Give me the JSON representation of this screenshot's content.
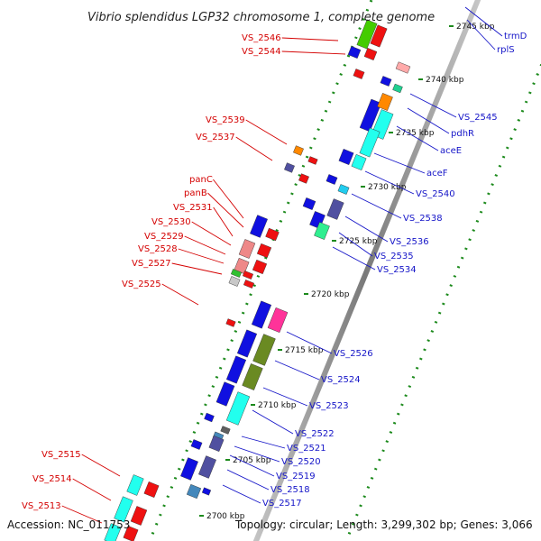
{
  "title": "Vibrio splendidus LGP32 chromosome 1, complete genome",
  "footer": {
    "accession": "Accession: NC_011753",
    "summary": "Topology: circular; Length: 3,299,302 bp; Genes: 3,066"
  },
  "colors": {
    "backbone": "#8a8a8a",
    "dots": "#1c8a1c",
    "minus_label": "#d40000",
    "plus_label": "#1515c8",
    "forward_gene": "#1010e0",
    "reverse_gene": "#ee1111"
  },
  "kbp_ticks": [
    "2700 kbp",
    "2705 kbp",
    "2710 kbp",
    "2715 kbp",
    "2720 kbp",
    "2725 kbp",
    "2730 kbp",
    "2735 kbp",
    "2740 kbp",
    "2745 kbp"
  ],
  "labels_left": [
    "VS_2546",
    "VS_2544",
    "VS_2539",
    "VS_2537",
    "panC",
    "panB",
    "VS_2531",
    "VS_2530",
    "VS_2529",
    "VS_2528",
    "VS_2527",
    "VS_2525",
    "VS_2515",
    "VS_2514",
    "VS_2513"
  ],
  "labels_right": [
    "trmD",
    "rplS",
    "VS_2545",
    "pdhR",
    "aceE",
    "aceF",
    "VS_2540",
    "VS_2538",
    "VS_2536",
    "VS_2535",
    "VS_2534",
    "VS_2526",
    "VS_2524",
    "VS_2523",
    "VS_2522",
    "VS_2521",
    "VS_2520",
    "VS_2519",
    "VS_2518",
    "VS_2517"
  ]
}
